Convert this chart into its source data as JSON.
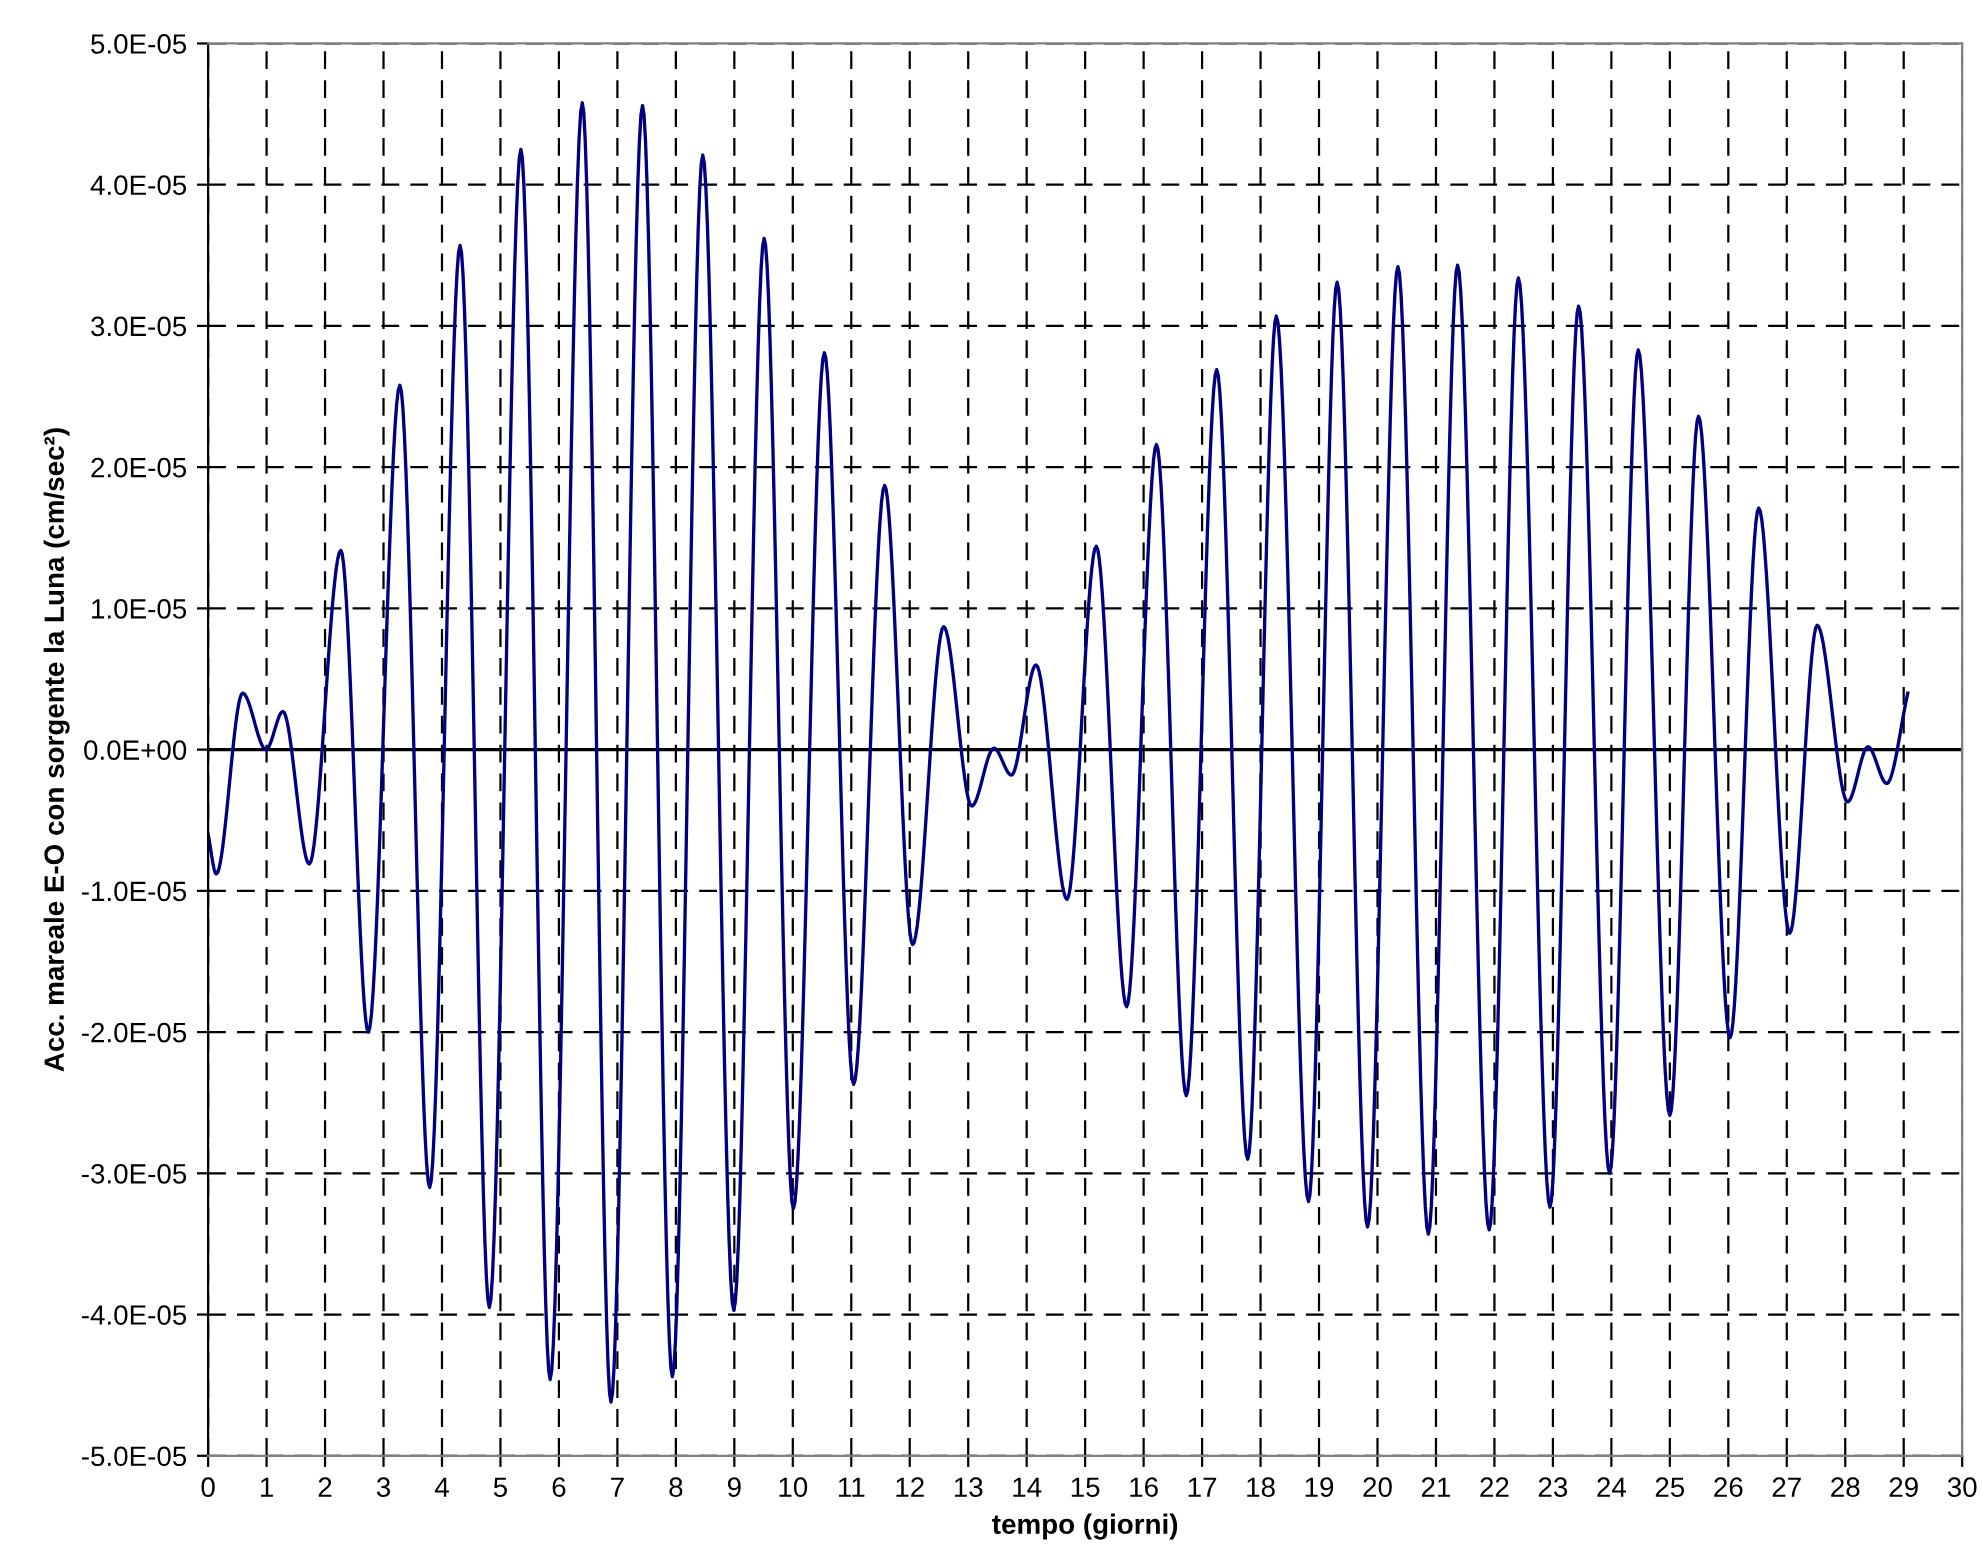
{
  "chart_data": {
    "type": "line",
    "xlabel": "tempo (giorni)",
    "ylabel": "Acc. mareale E-O con sorgente la Luna (cm/sec²)",
    "x": [
      0,
      0.14,
      0.59,
      0.99,
      1.28,
      1.73,
      2.27,
      2.74,
      3.28,
      3.79,
      4.31,
      4.81,
      5.35,
      5.85,
      6.4,
      6.89,
      7.43,
      7.94,
      8.46,
      8.99,
      9.51,
      10.01,
      10.54,
      11.04,
      11.57,
      12.05,
      12.58,
      13.06,
      13.44,
      13.74,
      14.16,
      14.69,
      15.19,
      15.71,
      16.22,
      16.73,
      17.25,
      17.78,
      18.27,
      18.82,
      19.31,
      19.83,
      20.35,
      20.87,
      21.37,
      21.91,
      22.41,
      22.95,
      23.44,
      23.97,
      24.46,
      25.0,
      25.49,
      26.03,
      26.52,
      27.05,
      27.52,
      28.04,
      28.39,
      28.71,
      29.07
    ],
    "series": [
      {
        "color": "#000080",
        "values": [
          -6e-06,
          -8.8e-06,
          4e-06,
          0.0,
          2.7e-06,
          -8.1e-06,
          1.41e-05,
          -2e-05,
          2.58e-05,
          -3.1e-05,
          3.57e-05,
          -3.95e-05,
          4.25e-05,
          -4.46e-05,
          4.58e-05,
          -4.62e-05,
          4.56e-05,
          -4.44e-05,
          4.21e-05,
          -3.97e-05,
          3.62e-05,
          -3.25e-05,
          2.81e-05,
          -2.37e-05,
          1.87e-05,
          -1.38e-05,
          8.7e-06,
          -4e-06,
          1e-07,
          -1.8e-06,
          6e-06,
          -1.06e-05,
          1.44e-05,
          -1.82e-05,
          2.16e-05,
          -2.45e-05,
          2.69e-05,
          -2.9e-05,
          3.07e-05,
          -3.2e-05,
          3.31e-05,
          -3.38e-05,
          3.42e-05,
          -3.43e-05,
          3.43e-05,
          -3.4e-05,
          3.34e-05,
          -3.24e-05,
          3.14e-05,
          -3e-05,
          2.83e-05,
          -2.59e-05,
          2.36e-05,
          -2.04e-05,
          1.71e-05,
          -1.3e-05,
          8.8e-06,
          -3.7e-06,
          2e-07,
          -2.4e-06,
          4e-06
        ]
      }
    ],
    "xlim": [
      0,
      30
    ],
    "xticks": [
      0,
      1,
      2,
      3,
      4,
      5,
      6,
      7,
      8,
      9,
      10,
      11,
      12,
      13,
      14,
      15,
      16,
      17,
      18,
      19,
      20,
      21,
      22,
      23,
      24,
      25,
      26,
      27,
      28,
      29,
      30
    ],
    "ylim": [
      -5e-05,
      5e-05
    ],
    "yticks": [
      {
        "value": -5e-05,
        "label": "-5.0E-05"
      },
      {
        "value": -4e-05,
        "label": "-4.0E-05"
      },
      {
        "value": -3e-05,
        "label": "-3.0E-05"
      },
      {
        "value": -2e-05,
        "label": "-2.0E-05"
      },
      {
        "value": -1e-05,
        "label": "-1.0E-05"
      },
      {
        "value": 0,
        "label": "0.0E+00"
      },
      {
        "value": 1e-05,
        "label": "1.0E-05"
      },
      {
        "value": 2e-05,
        "label": "2.0E-05"
      },
      {
        "value": 3e-05,
        "label": "3.0E-05"
      },
      {
        "value": 4e-05,
        "label": "4.0E-05"
      },
      {
        "value": 5e-05,
        "label": "5.0E-05"
      }
    ],
    "ref_lines": [
      {
        "axis": "y",
        "value": 0,
        "color": "#000000",
        "line_style": "solid"
      }
    ],
    "grid": true,
    "line_style": "solid",
    "marker": "none"
  }
}
